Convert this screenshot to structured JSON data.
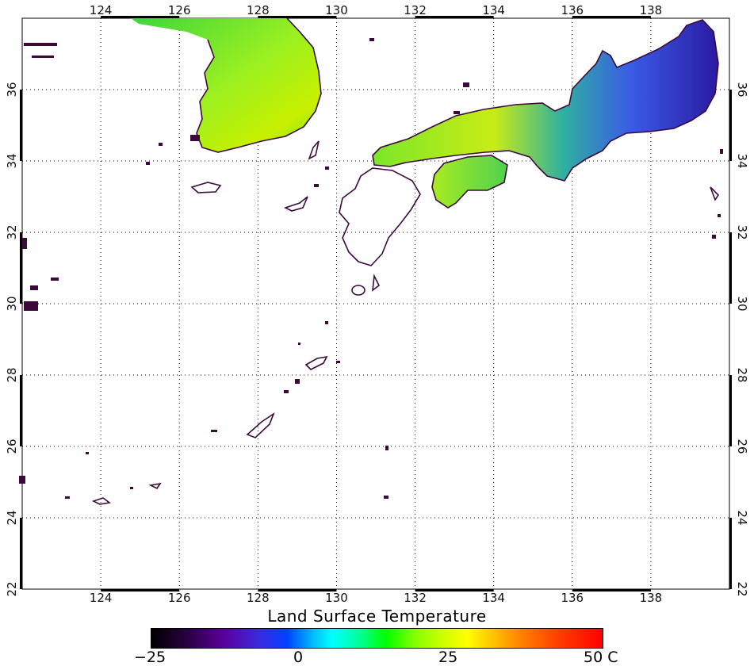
{
  "title": "Land Surface Temperature",
  "map": {
    "lon_ticks": [
      "124",
      "126",
      "128",
      "130",
      "132",
      "134",
      "136",
      "138"
    ],
    "lat_ticks": [
      "22",
      "24",
      "26",
      "28",
      "30",
      "32",
      "34",
      "36"
    ],
    "lon_range": [
      122,
      140
    ],
    "lat_range": [
      22,
      38
    ],
    "grid": "dotted"
  },
  "colorbar": {
    "labels": [
      "−25",
      "0",
      "25",
      "50"
    ],
    "unit": "C",
    "range": [
      -25,
      50
    ],
    "colors": [
      "#000000",
      "#5a009a",
      "#0040ff",
      "#00ffff",
      "#00ff00",
      "#ffff00",
      "#ff8000",
      "#ff0000"
    ]
  },
  "colors": {
    "coastline": "#3b0a3b",
    "grid": "#000000"
  }
}
